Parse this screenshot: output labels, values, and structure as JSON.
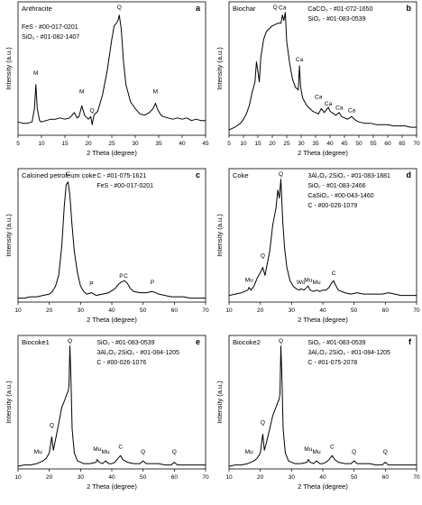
{
  "chart_data": [
    {
      "type": "line",
      "panel_letter": "a",
      "sample": "Anthracite",
      "refs": [
        "FeS - #00-017-0201",
        "SiO₂ - #01-082-1407"
      ],
      "xlabel": "2 Theta (degree)",
      "ylabel": "Intensity (a.u.)",
      "xlim": [
        5,
        45
      ],
      "xticks": [
        5,
        10,
        15,
        20,
        25,
        30,
        35,
        40,
        45
      ],
      "ylim": [
        0,
        100
      ],
      "peak_labels": [
        {
          "label": "M",
          "x": 8.8,
          "y": 44
        },
        {
          "label": "M",
          "x": 18.6,
          "y": 30
        },
        {
          "label": "Q",
          "x": 20.8,
          "y": 16
        },
        {
          "label": "Q",
          "x": 26.6,
          "y": 98
        },
        {
          "label": "M",
          "x": 34.3,
          "y": 30
        }
      ],
      "x": [
        5,
        6,
        7,
        8,
        8.5,
        8.8,
        9.1,
        9.6,
        10,
        11,
        12,
        13,
        14,
        15,
        16,
        17,
        17.6,
        18,
        18.6,
        19.2,
        20,
        20.5,
        20.8,
        21.2,
        22,
        23,
        24,
        25,
        25.5,
        26,
        26.3,
        26.6,
        27,
        27.5,
        28,
        29,
        30,
        31,
        32,
        33,
        33.8,
        34.3,
        34.8,
        35.5,
        36,
        37,
        38,
        39,
        40,
        41,
        42,
        43,
        44,
        45
      ],
      "y": [
        10,
        9,
        9,
        10,
        20,
        38,
        20,
        11,
        10,
        11,
        12,
        12,
        13,
        12,
        13,
        17,
        13,
        14,
        22,
        15,
        12,
        14,
        8,
        15,
        18,
        30,
        48,
        72,
        82,
        84,
        86,
        90,
        80,
        55,
        38,
        25,
        20,
        16,
        15,
        17,
        20,
        24,
        19,
        15,
        14,
        13,
        12,
        13,
        12,
        13,
        11,
        12,
        11,
        11
      ]
    },
    {
      "type": "line",
      "panel_letter": "b",
      "sample": "Biochar",
      "refs": [
        "CaCO₃ - #01-072-1650",
        "SiO₂ - #01-083-0539"
      ],
      "xlabel": "2 Theta (degree)",
      "ylabel": "Intensity (a.u.)",
      "xlim": [
        5,
        70
      ],
      "xticks": [
        5,
        10,
        15,
        20,
        25,
        30,
        35,
        40,
        45,
        50,
        55,
        60,
        65,
        70
      ],
      "ylim": [
        0,
        100
      ],
      "peak_labels": [
        {
          "label": "Q",
          "x": 21,
          "y": 96
        },
        {
          "label": "Ca",
          "x": 23.5,
          "y": 93
        },
        {
          "label": "Ca",
          "x": 29.4,
          "y": 54
        },
        {
          "label": "Ca",
          "x": 36,
          "y": 26
        },
        {
          "label": "Ca",
          "x": 39.4,
          "y": 21
        },
        {
          "label": "Ca",
          "x": 43.2,
          "y": 18
        },
        {
          "label": "Ca",
          "x": 47.5,
          "y": 16
        }
      ],
      "x": [
        5,
        7,
        9,
        10,
        11,
        12,
        13,
        14,
        14.5,
        15,
        15.5,
        16,
        17,
        18,
        19,
        20,
        21,
        22,
        23,
        23.5,
        24,
        24.5,
        25,
        26,
        27,
        28,
        29,
        29.4,
        29.8,
        30.5,
        32,
        34,
        36,
        37,
        38,
        39.4,
        40,
        42,
        43.2,
        44,
        46,
        47.5,
        49,
        50,
        52,
        54,
        56,
        58,
        60,
        62,
        64,
        66,
        68,
        70
      ],
      "y": [
        4,
        6,
        9,
        12,
        16,
        22,
        32,
        40,
        55,
        48,
        40,
        58,
        72,
        78,
        80,
        82,
        83,
        84,
        84,
        90,
        86,
        92,
        70,
        54,
        42,
        36,
        34,
        52,
        36,
        28,
        22,
        18,
        16,
        20,
        17,
        21,
        18,
        15,
        17,
        14,
        12,
        14,
        11,
        10,
        9,
        9,
        8,
        8,
        8,
        7,
        7,
        7,
        6,
        6
      ]
    },
    {
      "type": "line",
      "panel_letter": "c",
      "sample": "Calcined petroleum coke",
      "refs": [
        "C - #01-075-1621",
        "FeS - #00-017-0201"
      ],
      "xlabel": "2 Theta (degree)",
      "ylabel": "Intensity (a.u.)",
      "xlim": [
        10,
        70
      ],
      "xticks": [
        10,
        20,
        30,
        40,
        50,
        60,
        70
      ],
      "ylim": [
        0,
        100
      ],
      "peak_labels": [
        {
          "label": "C",
          "x": 26,
          "y": 100
        },
        {
          "label": "P",
          "x": 33.5,
          "y": 11
        },
        {
          "label": "P",
          "x": 43,
          "y": 17
        },
        {
          "label": "C",
          "x": 44.5,
          "y": 17
        },
        {
          "label": "P",
          "x": 53,
          "y": 12
        }
      ],
      "x": [
        10,
        12,
        14,
        16,
        18,
        20,
        21,
        22,
        23,
        24,
        24.8,
        25.4,
        26,
        26.6,
        27.2,
        28,
        29,
        30,
        31,
        32,
        33.5,
        35,
        37,
        39,
        41,
        42,
        43,
        44,
        45,
        46,
        47,
        49,
        51,
        53,
        55,
        57,
        59,
        61,
        63,
        65,
        67,
        70
      ],
      "y": [
        3,
        3,
        4,
        4,
        5,
        6,
        8,
        12,
        20,
        42,
        72,
        88,
        90,
        80,
        60,
        38,
        22,
        12,
        8,
        6,
        7,
        5,
        6,
        7,
        10,
        13,
        15,
        16,
        14,
        10,
        8,
        7,
        7,
        8,
        6,
        5,
        4,
        4,
        4,
        3,
        3,
        3
      ]
    },
    {
      "type": "line",
      "panel_letter": "d",
      "sample": "Coke",
      "refs": [
        "3Al₂O₃·2SiO₂ - #01-083-1881",
        "SiO₂ - #01-083-2466",
        "CaSiO₃ - #00-043-1460",
        "C - #00-026-1079"
      ],
      "xlabel": "2 Theta (degree)",
      "ylabel": "Intensity (a.u.)",
      "xlim": [
        10,
        70
      ],
      "xticks": [
        10,
        20,
        30,
        40,
        50,
        60,
        70
      ],
      "ylim": [
        0,
        100
      ],
      "peak_labels": [
        {
          "label": "Mu",
          "x": 16.4,
          "y": 14
        },
        {
          "label": "Q",
          "x": 20.8,
          "y": 32
        },
        {
          "label": "Q",
          "x": 26.6,
          "y": 98
        },
        {
          "label": "Wo",
          "x": 33,
          "y": 12
        },
        {
          "label": "Mu",
          "x": 35.3,
          "y": 14
        },
        {
          "label": "Mu",
          "x": 38,
          "y": 12
        },
        {
          "label": "C",
          "x": 43.5,
          "y": 19
        }
      ],
      "x": [
        10,
        12,
        14,
        15,
        16,
        16.4,
        17,
        18,
        19,
        20,
        20.8,
        21.5,
        22,
        23,
        24,
        25,
        25.6,
        26.1,
        26.6,
        27.2,
        27.8,
        28.5,
        29.5,
        30.5,
        31.5,
        32.5,
        33,
        34,
        35.3,
        36,
        37,
        38,
        39,
        40,
        41,
        42,
        43,
        43.5,
        44,
        45,
        47,
        49,
        51,
        53,
        55,
        57,
        59,
        61,
        63,
        65,
        67,
        70
      ],
      "y": [
        5,
        6,
        7,
        8,
        9,
        11,
        9,
        12,
        18,
        22,
        26,
        20,
        26,
        38,
        58,
        70,
        84,
        78,
        92,
        60,
        40,
        26,
        16,
        12,
        10,
        9,
        10,
        9,
        12,
        9,
        8,
        9,
        8,
        9,
        9,
        11,
        15,
        16,
        13,
        9,
        7,
        6,
        7,
        6,
        6,
        6,
        6,
        7,
        6,
        5,
        5,
        5
      ]
    },
    {
      "type": "line",
      "panel_letter": "e",
      "sample": "Biocoke1",
      "refs": [
        "SiO₂ - #01-083-0539",
        "3Al₂O₃·2SiO₂ - #01-084-1205",
        "C - #00-026-1076"
      ],
      "xlabel": "2 Theta (degree)",
      "ylabel": "Intensity (a.u.)",
      "xlim": [
        10,
        70
      ],
      "xticks": [
        10,
        20,
        30,
        40,
        50,
        60,
        70
      ],
      "ylim": [
        0,
        100
      ],
      "peak_labels": [
        {
          "label": "Mu",
          "x": 16.4,
          "y": 10
        },
        {
          "label": "Q",
          "x": 20.8,
          "y": 30
        },
        {
          "label": "Q",
          "x": 26.6,
          "y": 99
        },
        {
          "label": "Mu",
          "x": 35.3,
          "y": 12
        },
        {
          "label": "Mu",
          "x": 38,
          "y": 10
        },
        {
          "label": "C",
          "x": 42.8,
          "y": 14
        },
        {
          "label": "Q",
          "x": 50,
          "y": 10
        },
        {
          "label": "Q",
          "x": 60,
          "y": 10
        }
      ],
      "x": [
        10,
        12,
        14,
        16,
        17,
        18,
        19,
        20,
        20.8,
        21.3,
        22,
        23,
        24,
        25,
        25.6,
        26,
        26.3,
        26.6,
        26.9,
        27.3,
        28,
        29,
        30,
        31,
        33,
        35,
        35.3,
        36,
        37,
        38,
        39,
        40,
        41,
        42,
        42.8,
        43.5,
        45,
        47,
        49,
        50,
        51,
        53,
        55,
        57,
        59,
        60,
        61,
        63,
        65,
        67,
        70
      ],
      "y": [
        2,
        3,
        3,
        4,
        5,
        6,
        8,
        12,
        24,
        14,
        22,
        34,
        46,
        52,
        56,
        58,
        62,
        92,
        70,
        30,
        12,
        6,
        5,
        4,
        4,
        5,
        7,
        5,
        4,
        6,
        4,
        4,
        5,
        8,
        10,
        7,
        5,
        4,
        4,
        6,
        4,
        4,
        4,
        3,
        3,
        5,
        3,
        3,
        3,
        3,
        3
      ]
    },
    {
      "type": "line",
      "panel_letter": "f",
      "sample": "Biocoke2",
      "refs": [
        "SiO₂ - #01-083-0539",
        "3Al₂O₃·2SiO₂ - #01-084-1205",
        "C - #01-075-2078"
      ],
      "xlabel": "2 Theta (degree)",
      "ylabel": "Intensity (a.u.)",
      "xlim": [
        10,
        70
      ],
      "xticks": [
        10,
        20,
        30,
        40,
        50,
        60,
        70
      ],
      "ylim": [
        0,
        100
      ],
      "peak_labels": [
        {
          "label": "Mu",
          "x": 16.4,
          "y": 10
        },
        {
          "label": "Q",
          "x": 20.8,
          "y": 32
        },
        {
          "label": "Q",
          "x": 26.6,
          "y": 99
        },
        {
          "label": "Mu",
          "x": 35.3,
          "y": 12
        },
        {
          "label": "Mu",
          "x": 38,
          "y": 10
        },
        {
          "label": "C",
          "x": 43,
          "y": 14
        },
        {
          "label": "Q",
          "x": 50,
          "y": 10
        },
        {
          "label": "Q",
          "x": 60,
          "y": 10
        }
      ],
      "x": [
        10,
        12,
        14,
        16,
        17,
        18,
        19,
        20,
        20.8,
        21.3,
        22,
        23,
        24,
        25,
        25.6,
        26,
        26.3,
        26.6,
        26.9,
        27.3,
        28,
        29,
        30,
        31,
        33,
        35,
        35.3,
        36,
        37,
        38,
        39,
        40,
        41,
        42,
        43,
        43.8,
        45,
        47,
        49,
        50,
        51,
        53,
        55,
        57,
        59,
        60,
        61,
        63,
        65,
        67,
        70
      ],
      "y": [
        2,
        3,
        3,
        4,
        5,
        6,
        8,
        12,
        26,
        14,
        20,
        30,
        40,
        46,
        50,
        52,
        56,
        92,
        70,
        30,
        12,
        6,
        5,
        4,
        4,
        5,
        7,
        5,
        4,
        6,
        4,
        4,
        5,
        7,
        10,
        7,
        5,
        4,
        4,
        6,
        4,
        4,
        4,
        3,
        3,
        5,
        3,
        3,
        3,
        3,
        3
      ]
    }
  ]
}
